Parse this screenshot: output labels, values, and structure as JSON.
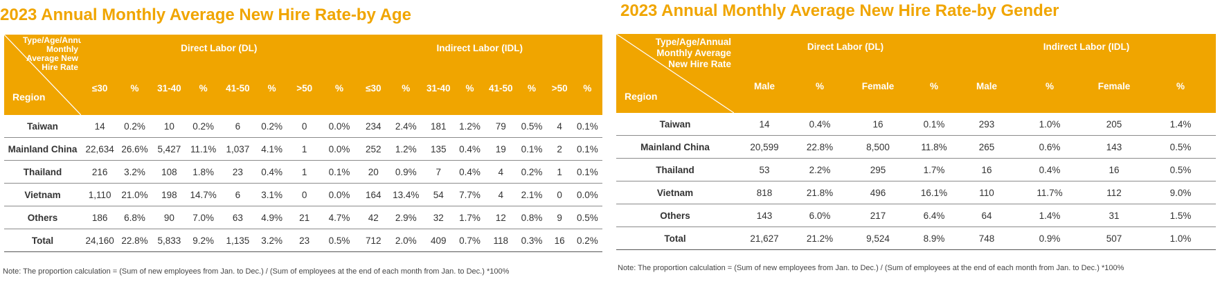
{
  "age_table": {
    "title": "2023 Annual Monthly Average New Hire Rate-by Age",
    "corner_top_label": "Type/Age/Annual Monthly Average New Hire Rate",
    "corner_region_label": "Region",
    "groups": [
      "Direct Labor (DL)",
      "Indirect Labor (IDL)"
    ],
    "sub_headers": [
      "≤30",
      "%",
      "31-40",
      "%",
      "41-50",
      "%",
      ">50",
      "%",
      "≤30",
      "%",
      "31-40",
      "%",
      "41-50",
      "%",
      ">50",
      "%"
    ],
    "rows": [
      {
        "region": "Taiwan",
        "values": [
          "14",
          "0.2%",
          "10",
          "0.2%",
          "6",
          "0.2%",
          "0",
          "0.0%",
          "234",
          "2.4%",
          "181",
          "1.2%",
          "79",
          "0.5%",
          "4",
          "0.1%"
        ]
      },
      {
        "region": "Mainland China",
        "values": [
          "22,634",
          "26.6%",
          "5,427",
          "11.1%",
          "1,037",
          "4.1%",
          "1",
          "0.0%",
          "252",
          "1.2%",
          "135",
          "0.4%",
          "19",
          "0.1%",
          "2",
          "0.1%"
        ]
      },
      {
        "region": "Thailand",
        "values": [
          "216",
          "3.2%",
          "108",
          "1.8%",
          "23",
          "0.4%",
          "1",
          "0.1%",
          "20",
          "0.9%",
          "7",
          "0.4%",
          "4",
          "0.2%",
          "1",
          "0.1%"
        ]
      },
      {
        "region": "Vietnam",
        "values": [
          "1,110",
          "21.0%",
          "198",
          "14.7%",
          "6",
          "3.1%",
          "0",
          "0.0%",
          "164",
          "13.4%",
          "54",
          "7.7%",
          "4",
          "2.1%",
          "0",
          "0.0%"
        ]
      },
      {
        "region": "Others",
        "values": [
          "186",
          "6.8%",
          "90",
          "7.0%",
          "63",
          "4.9%",
          "21",
          "4.7%",
          "42",
          "2.9%",
          "32",
          "1.7%",
          "12",
          "0.8%",
          "9",
          "0.5%"
        ]
      },
      {
        "region": "Total",
        "values": [
          "24,160",
          "22.8%",
          "5,833",
          "9.2%",
          "1,135",
          "3.2%",
          "23",
          "0.5%",
          "712",
          "2.0%",
          "409",
          "0.7%",
          "118",
          "0.3%",
          "16",
          "0.2%"
        ]
      }
    ],
    "note": "Note: The proportion calculation = (Sum of new employees from Jan. to Dec.) / (Sum of employees at the end of each month from Jan. to Dec.) *100%"
  },
  "gender_table": {
    "title": "2023 Annual Monthly Average New Hire Rate-by Gender",
    "corner_top_label": "Type/Age/Annual Monthly Average New Hire Rate",
    "corner_region_label": "Region",
    "groups": [
      "Direct Labor (DL)",
      "Indirect Labor (IDL)"
    ],
    "sub_headers": [
      "Male",
      "%",
      "Female",
      "%",
      "Male",
      "%",
      "Female",
      "%"
    ],
    "rows": [
      {
        "region": "Taiwan",
        "values": [
          "14",
          "0.4%",
          "16",
          "0.1%",
          "293",
          "1.0%",
          "205",
          "1.4%"
        ]
      },
      {
        "region": "Mainland China",
        "values": [
          "20,599",
          "22.8%",
          "8,500",
          "11.8%",
          "265",
          "0.6%",
          "143",
          "0.5%"
        ]
      },
      {
        "region": "Thailand",
        "values": [
          "53",
          "2.2%",
          "295",
          "1.7%",
          "16",
          "0.4%",
          "16",
          "0.5%"
        ]
      },
      {
        "region": "Vietnam",
        "values": [
          "818",
          "21.8%",
          "496",
          "16.1%",
          "110",
          "11.7%",
          "112",
          "9.0%"
        ]
      },
      {
        "region": "Others",
        "values": [
          "143",
          "6.0%",
          "217",
          "6.4%",
          "64",
          "1.4%",
          "31",
          "1.5%"
        ]
      },
      {
        "region": "Total",
        "values": [
          "21,627",
          "21.2%",
          "9,524",
          "8.9%",
          "748",
          "0.9%",
          "507",
          "1.0%"
        ]
      }
    ],
    "note": "Note: The proportion calculation = (Sum of new employees from Jan. to Dec.) / (Sum of employees at the end of each month from Jan. to Dec.) *100%"
  },
  "colors": {
    "header_bg": "#f0a500",
    "title": "#f0a500",
    "header_text": "#ffffff"
  }
}
